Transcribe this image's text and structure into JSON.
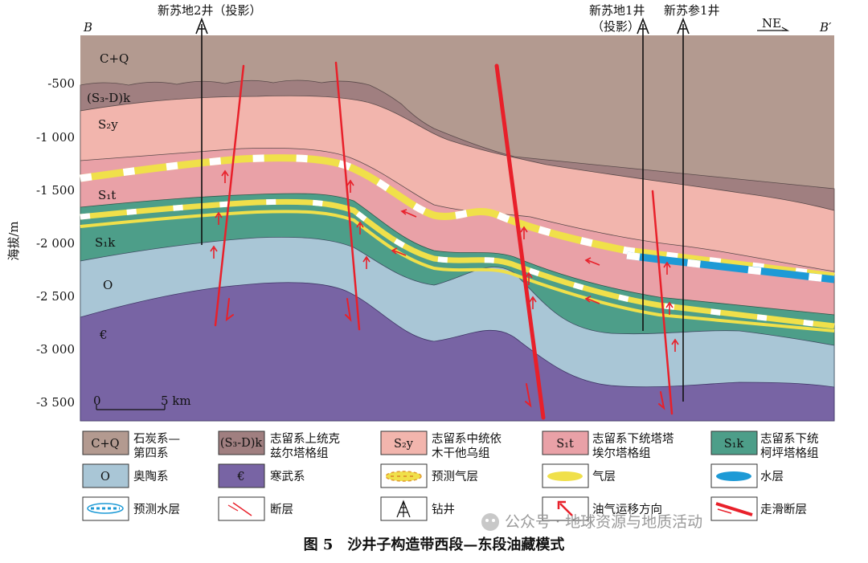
{
  "section": {
    "left_end": "B",
    "right_end": "B′",
    "direction": "NE",
    "wells": [
      {
        "name": "新苏地2井（投影）"
      },
      {
        "name": "新苏地1井",
        "note": "（投影）"
      },
      {
        "name": "新苏参1井"
      }
    ],
    "y_axis_label": "海拔/m",
    "y_ticks": [
      "-500",
      "-1 000",
      "-1 500",
      "-2 000",
      "-2 500",
      "-3 000",
      "-3 500"
    ],
    "scale_bar": {
      "zero": "0",
      "end": "5 km"
    },
    "layer_labels": {
      "cq": "C+Q",
      "s3d": "(S₃-D)k",
      "s2y": "S₂y",
      "s1t": "S₁t",
      "s1k": "S₁k",
      "o": "O",
      "cambrian": "€"
    }
  },
  "legend": [
    {
      "key": "cq",
      "symbol": "C+Q",
      "label1": "石炭系—",
      "label2": "第四系",
      "color": "#b39a90"
    },
    {
      "key": "s3d",
      "symbol": "(S₃-D)k",
      "label1": "志留系上统克",
      "label2": "兹尔塔格组",
      "color": "#a07f80"
    },
    {
      "key": "s2y",
      "symbol": "S₂y",
      "label1": "志留系中统依",
      "label2": "木干他乌组",
      "color": "#f2b5ad"
    },
    {
      "key": "s1t",
      "symbol": "S₁t",
      "label1": "志留系下统塔塔",
      "label2": "埃尔塔格组",
      "color": "#e9a1a7"
    },
    {
      "key": "s1k",
      "symbol": "S₁k",
      "label1": "志留系下统",
      "label2": "柯坪塔格组",
      "color": "#4d9e89"
    },
    {
      "key": "o",
      "symbol": "O",
      "label1": "奥陶系",
      "label2": "",
      "color": "#a9c6d6"
    },
    {
      "key": "cambrian",
      "symbol": "€",
      "label1": "寒武系",
      "label2": "",
      "color": "#7864a4"
    },
    {
      "key": "pred_gas",
      "symbol": "",
      "label1": "预测气层",
      "label2": "",
      "color": "#f0e04a"
    },
    {
      "key": "gas",
      "symbol": "",
      "label1": "气层",
      "label2": "",
      "color": "#f0e04a"
    },
    {
      "key": "water",
      "symbol": "",
      "label1": "水层",
      "label2": "",
      "color": "#1d9ad6"
    },
    {
      "key": "pred_water",
      "symbol": "",
      "label1": "预测水层",
      "label2": "",
      "color": "#1d9ad6"
    },
    {
      "key": "fault",
      "symbol": "",
      "label1": "断层",
      "label2": "",
      "color": "#e8202a"
    },
    {
      "key": "well",
      "symbol": "",
      "label1": "钻井",
      "label2": "",
      "color": "#111111"
    },
    {
      "key": "migration",
      "symbol": "",
      "label1": "油气运移方向",
      "label2": "",
      "color": "#e8202a"
    },
    {
      "key": "strike_slip",
      "symbol": "",
      "label1": "走滑断层",
      "label2": "",
      "color": "#e8202a"
    }
  ],
  "caption": "图 5　沙井子构造带西段—东段油藏模式",
  "watermark": "公众号 · 地球资源与地质活动"
}
